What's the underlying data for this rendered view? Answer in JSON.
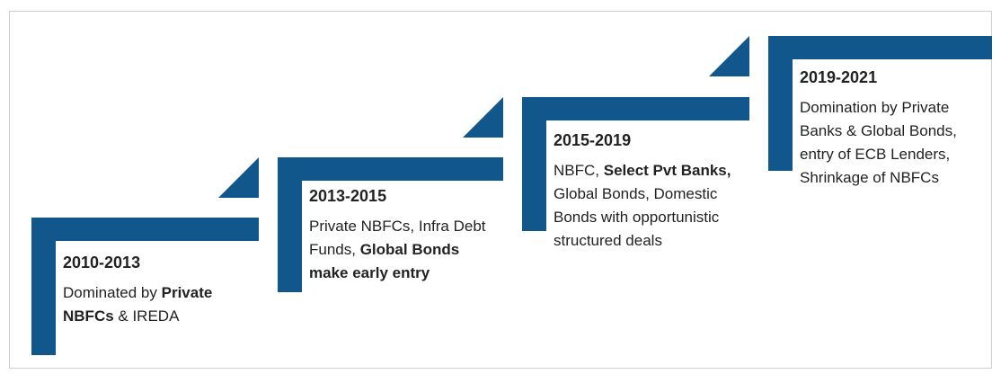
{
  "steps": [
    {
      "period": "2010-2013",
      "text": [
        {
          "text": "Dominated by ",
          "bold": false
        },
        {
          "text": "Private NBFCs",
          "bold": true
        },
        {
          "text": " & IREDA",
          "bold": false
        }
      ]
    },
    {
      "period": "2013-2015",
      "text": [
        {
          "text": "Private NBFCs, Infra Debt Funds, ",
          "bold": false
        },
        {
          "text": "Global Bonds make early entry",
          "bold": true
        }
      ]
    },
    {
      "period": "2015-2019",
      "text": [
        {
          "text": "NBFC, ",
          "bold": false
        },
        {
          "text": "Select Pvt Banks,",
          "bold": true
        },
        {
          "text": " Global Bonds, Domestic Bonds with opportunistic structured deals",
          "bold": false
        }
      ]
    },
    {
      "period": "2019-2021",
      "text": [
        {
          "text": "Domination by Private Banks & Global Bonds, entry of ECB Lenders, Shrinkage of NBFCs",
          "bold": false
        }
      ]
    }
  ]
}
